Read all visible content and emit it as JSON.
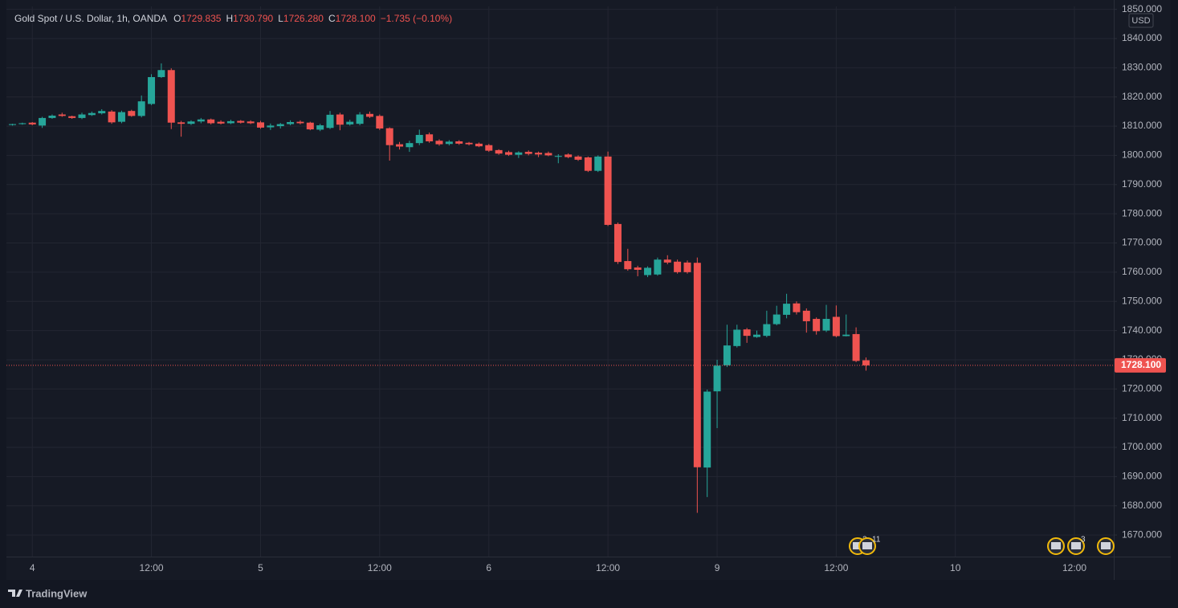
{
  "chart_data": {
    "type": "candlestick",
    "header": {
      "symbol": "Gold Spot / U.S. Dollar, 1h, OANDA",
      "o_label": "O",
      "o": "1729.835",
      "h_label": "H",
      "h": "1730.790",
      "l_label": "L",
      "l": "1726.280",
      "c_label": "C",
      "c": "1728.100",
      "change": "−1.735 (−0.10%)"
    },
    "currency": "USD",
    "brand": "TradingView",
    "event_badges": [
      "2",
      "11",
      "3"
    ],
    "up_color": "#26a69a",
    "down_color": "#ef5350",
    "grid": true,
    "last_price": {
      "value": 1728.1,
      "label": "1728.100"
    },
    "ylim": [
      1662.6,
      1851
    ],
    "yticks": [
      {
        "value": 1670,
        "label": "1670.000"
      },
      {
        "value": 1680,
        "label": "1680.000"
      },
      {
        "value": 1690,
        "label": "1690.000"
      },
      {
        "value": 1700,
        "label": "1700.000"
      },
      {
        "value": 1710,
        "label": "1710.000"
      },
      {
        "value": 1720,
        "label": "1720.000"
      },
      {
        "value": 1730,
        "label": "1730.000"
      },
      {
        "value": 1740,
        "label": "1740.000"
      },
      {
        "value": 1750,
        "label": "1750.000"
      },
      {
        "value": 1760,
        "label": "1760.000"
      },
      {
        "value": 1770,
        "label": "1770.000"
      },
      {
        "value": 1780,
        "label": "1780.000"
      },
      {
        "value": 1790,
        "label": "1790.000"
      },
      {
        "value": 1800,
        "label": "1800.000"
      },
      {
        "value": 1810,
        "label": "1810.000"
      },
      {
        "value": 1820,
        "label": "1820.000"
      },
      {
        "value": 1830,
        "label": "1830.000"
      },
      {
        "value": 1840,
        "label": "1840.000"
      },
      {
        "value": 1850,
        "label": "1850.000"
      }
    ],
    "categories": [
      null,
      null,
      "4",
      null,
      null,
      null,
      null,
      null,
      null,
      null,
      null,
      null,
      null,
      null,
      "12:00",
      null,
      null,
      null,
      null,
      null,
      null,
      null,
      null,
      null,
      null,
      "5",
      null,
      null,
      null,
      null,
      null,
      null,
      null,
      null,
      null,
      null,
      null,
      "12:00",
      null,
      null,
      null,
      null,
      null,
      null,
      null,
      null,
      null,
      null,
      "6",
      null,
      null,
      null,
      null,
      null,
      null,
      null,
      null,
      null,
      null,
      null,
      "12:00",
      null,
      null,
      null,
      null,
      null,
      null,
      null,
      null,
      null,
      null,
      "9",
      null,
      null,
      null,
      null,
      null,
      null,
      null,
      null,
      null,
      null,
      null,
      "12:00",
      null,
      null,
      null,
      null,
      null,
      null,
      null,
      null,
      null,
      null,
      null,
      "10",
      null,
      null,
      null,
      null,
      null,
      null,
      null,
      null,
      null,
      null,
      null,
      "12:00",
      null,
      null,
      null
    ],
    "open": [
      1810.4,
      1810.7,
      1811.2,
      1810.2,
      1812.8,
      1814,
      1813.4,
      1812.8,
      1813.8,
      1814.4,
      1815,
      1811.5,
      1815.2,
      1813.5,
      1817.6,
      1826.8,
      1829.2,
      1811.3,
      1810.8,
      1811.6,
      1812.3,
      1811.5,
      1811,
      1811.8,
      1811.6,
      1811.3,
      1809.6,
      1810,
      1810.7,
      1811.5,
      1811.2,
      1808.8,
      1809.4,
      1814,
      1810.6,
      1810.8,
      1814.2,
      1813.5,
      1809.3,
      1803.8,
      1802.8,
      1804.2,
      1807.2,
      1805,
      1803.9,
      1804.8,
      1804.3,
      1804,
      1803.5,
      1801.8,
      1801.1,
      1800.2,
      1801.2,
      1800.9,
      1800.8,
      1799.5,
      1800.3,
      1799.6,
      1799.3,
      1794.7,
      1799.6,
      1776.5,
      1763.8,
      1761.6,
      1759,
      1759.2,
      1764.3,
      1763.6,
      1763.3,
      1763.2,
      1693.1,
      1719.2,
      1728.1,
      1734.7,
      1740.4,
      1737.8,
      1738.2,
      1742.2,
      1745.4,
      1749.3,
      1746.8,
      1744,
      1740,
      1744.7,
      1738.1,
      1738.8,
      1729.835,
      null,
      null,
      null,
      null,
      null,
      null,
      null,
      null,
      null,
      null,
      null,
      null,
      null,
      null,
      null,
      null,
      null,
      null,
      null,
      null,
      null,
      null,
      null,
      null
    ],
    "high": [
      1810.8,
      1811.2,
      1811.4,
      1813.2,
      1814,
      1814.6,
      1813.6,
      1814.6,
      1815,
      1815.8,
      1815.5,
      1815.3,
      1815.6,
      1820.5,
      1827.8,
      1831.5,
      1829.8,
      1811.8,
      1812,
      1812.8,
      1812.6,
      1812,
      1812.2,
      1812.1,
      1812,
      1811.8,
      1810.9,
      1811.1,
      1812,
      1812,
      1811.5,
      1810.8,
      1815.2,
      1814.6,
      1812.2,
      1814.8,
      1815,
      1814,
      1809.6,
      1804.6,
      1805,
      1808.8,
      1807.8,
      1805.5,
      1805.2,
      1805.2,
      1804.6,
      1804.4,
      1803.9,
      1802.1,
      1801.6,
      1801.4,
      1801.7,
      1801.3,
      1801.3,
      1800.4,
      1800.7,
      1800,
      1799.6,
      1800,
      1801.3,
      1777,
      1768,
      1762.2,
      1762,
      1765,
      1765.8,
      1764.3,
      1764,
      1765,
      1719.8,
      1730,
      1742,
      1742,
      1740.9,
      1740,
      1746.8,
      1748.5,
      1752.6,
      1750,
      1747.6,
      1744.5,
      1748.8,
      1748.6,
      1745.5,
      1741.1,
      1730.79,
      null,
      null,
      null,
      null,
      null,
      null,
      null,
      null,
      null,
      null,
      null,
      null,
      null,
      null,
      null,
      null,
      null,
      null,
      null,
      null,
      null,
      null,
      null,
      null
    ],
    "low": [
      1810.2,
      1810.5,
      1810.3,
      1809.4,
      1812.5,
      1813.2,
      1812.5,
      1812.4,
      1813.5,
      1814,
      1810.8,
      1811,
      1813.2,
      1813,
      1817.2,
      1826.5,
      1809,
      1806.4,
      1810.4,
      1811,
      1810.6,
      1810.6,
      1810.7,
      1810.9,
      1810.7,
      1809.1,
      1808.7,
      1809.2,
      1810.3,
      1810.6,
      1808.6,
      1808.3,
      1809,
      1808.6,
      1810.2,
      1810.3,
      1812.8,
      1808.7,
      1798.2,
      1802,
      1801.2,
      1803.5,
      1804.3,
      1803.3,
      1803.4,
      1803.6,
      1803.4,
      1802.8,
      1801.2,
      1800.2,
      1799.8,
      1799.1,
      1800,
      1799.4,
      1799.7,
      1797.3,
      1799,
      1798.1,
      1794.3,
      1794.3,
      1775.8,
      1762.8,
      1760.5,
      1758.6,
      1758.3,
      1758.8,
      1762.7,
      1759.5,
      1759.5,
      1677.6,
      1683,
      1706.6,
      1727.5,
      1734.2,
      1735.8,
      1737.5,
      1737.7,
      1741.8,
      1744.2,
      1745.5,
      1739.3,
      1738.6,
      1739.5,
      1737.7,
      1738,
      1729.2,
      1726.28,
      null,
      null,
      null,
      null,
      null,
      null,
      null,
      null,
      null,
      null,
      null,
      null,
      null,
      null,
      null,
      null,
      null,
      null,
      null,
      null,
      null,
      null,
      null,
      null
    ],
    "close": [
      1810.7,
      1811,
      1810.6,
      1812.8,
      1813.6,
      1813.5,
      1812.8,
      1814,
      1814.5,
      1815.2,
      1811.3,
      1814.8,
      1813.5,
      1818.5,
      1826.8,
      1829.2,
      1811.2,
      1810.8,
      1811.6,
      1812.3,
      1811,
      1810.9,
      1811.7,
      1811.2,
      1811,
      1809.5,
      1810.2,
      1810.7,
      1811.4,
      1811,
      1808.9,
      1810.3,
      1813.9,
      1810.5,
      1811.5,
      1814,
      1813.2,
      1809.2,
      1803.5,
      1803,
      1804.2,
      1807,
      1804.8,
      1803.8,
      1804.7,
      1804,
      1803.8,
      1803.1,
      1801.6,
      1800.6,
      1800.2,
      1801,
      1800.5,
      1800.3,
      1800,
      1799.8,
      1799.4,
      1798.5,
      1794.7,
      1799.6,
      1776.2,
      1763.5,
      1761,
      1760.8,
      1761.5,
      1764.3,
      1763.3,
      1760,
      1760,
      1693.2,
      1719.1,
      1728,
      1734.9,
      1740.3,
      1738.2,
      1738.6,
      1742.2,
      1745.5,
      1749.2,
      1746.3,
      1743.2,
      1739.8,
      1744,
      1738.1,
      1738.6,
      1729.6,
      1728.1,
      null,
      null,
      null,
      null,
      null,
      null,
      null,
      null,
      null,
      null,
      null,
      null,
      null,
      null,
      null,
      null,
      null,
      null,
      null,
      null,
      null,
      null,
      null,
      null
    ]
  }
}
